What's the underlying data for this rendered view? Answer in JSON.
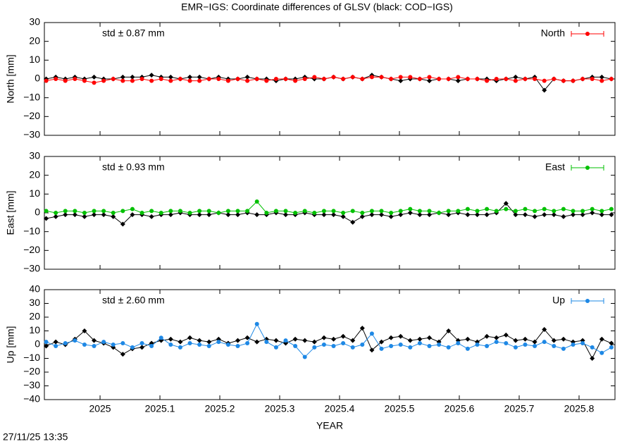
{
  "title": "EMR−IGS: Coordinate differences of GLSV (black: COD−IGS)",
  "timestamp": "27/11/25 13:35",
  "chart_data": [
    {
      "type": "line",
      "ylabel": "North [mm]",
      "annotation": "std ± 0.87 mm",
      "xlim": [
        2024.907,
        2025.86
      ],
      "xticks": [
        2025,
        2025.1,
        2025.2,
        2025.3,
        2025.4,
        2025.5,
        2025.6,
        2025.7,
        2025.8
      ],
      "ylim": [
        -30,
        30
      ],
      "yticks": [
        {
          "value": -30,
          "label": "−30"
        },
        {
          "value": -20,
          "label": "−20"
        },
        {
          "value": -10,
          "label": "−10"
        },
        0,
        10,
        20,
        30
      ],
      "x": [
        2024.91,
        2024.926,
        2024.942,
        2024.958,
        2024.974,
        2024.99,
        2025.006,
        2025.022,
        2025.038,
        2025.054,
        2025.07,
        2025.086,
        2025.102,
        2025.118,
        2025.134,
        2025.15,
        2025.166,
        2025.182,
        2025.198,
        2025.214,
        2025.23,
        2025.246,
        2025.262,
        2025.278,
        2025.294,
        2025.31,
        2025.326,
        2025.342,
        2025.358,
        2025.374,
        2025.39,
        2025.406,
        2025.422,
        2025.438,
        2025.454,
        2025.47,
        2025.486,
        2025.502,
        2025.518,
        2025.534,
        2025.55,
        2025.566,
        2025.582,
        2025.598,
        2025.614,
        2025.63,
        2025.646,
        2025.662,
        2025.678,
        2025.694,
        2025.71,
        2025.726,
        2025.742,
        2025.758,
        2025.774,
        2025.79,
        2025.806,
        2025.822,
        2025.838,
        2025.854
      ],
      "series": [
        {
          "name": "North",
          "color": "#ff0000",
          "values": [
            -1,
            0,
            -1,
            0,
            -1,
            -2,
            -1,
            0,
            -1,
            -1,
            0,
            -1,
            0,
            -1,
            0,
            -1,
            -1,
            0,
            0,
            -1,
            0,
            -1,
            0,
            -1,
            0,
            0,
            -1,
            0,
            1,
            0,
            1,
            0,
            1,
            0,
            1,
            1,
            0,
            1,
            1,
            0,
            1,
            0,
            0,
            1,
            0,
            0,
            -1,
            0,
            0,
            -1,
            0,
            0,
            -1,
            0,
            -1,
            -1,
            0,
            0,
            -1,
            0
          ]
        },
        {
          "color": "#000000",
          "values": [
            0,
            1,
            0,
            1,
            0,
            1,
            0,
            0,
            1,
            1,
            1,
            2,
            1,
            1,
            0,
            1,
            1,
            0,
            1,
            0,
            0,
            1,
            0,
            0,
            -1,
            0,
            0,
            1,
            0,
            0,
            1,
            0,
            1,
            0,
            2,
            1,
            0,
            -1,
            0,
            0,
            -1,
            0,
            0,
            -1,
            0,
            0,
            0,
            -1,
            0,
            1,
            0,
            1,
            -6,
            0,
            -1,
            -1,
            0,
            1,
            1,
            0
          ]
        }
      ]
    },
    {
      "type": "line",
      "ylabel": "East [mm]",
      "annotation": "std ± 0.93 mm",
      "xlim": [
        2024.907,
        2025.86
      ],
      "xticks": [
        2025,
        2025.1,
        2025.2,
        2025.3,
        2025.4,
        2025.5,
        2025.6,
        2025.7,
        2025.8
      ],
      "ylim": [
        -30,
        30
      ],
      "yticks": [
        {
          "value": -30,
          "label": "−30"
        },
        {
          "value": -20,
          "label": "−20"
        },
        {
          "value": -10,
          "label": "−10"
        },
        0,
        10,
        20,
        30
      ],
      "x": [
        2024.91,
        2024.926,
        2024.942,
        2024.958,
        2024.974,
        2024.99,
        2025.006,
        2025.022,
        2025.038,
        2025.054,
        2025.07,
        2025.086,
        2025.102,
        2025.118,
        2025.134,
        2025.15,
        2025.166,
        2025.182,
        2025.198,
        2025.214,
        2025.23,
        2025.246,
        2025.262,
        2025.278,
        2025.294,
        2025.31,
        2025.326,
        2025.342,
        2025.358,
        2025.374,
        2025.39,
        2025.406,
        2025.422,
        2025.438,
        2025.454,
        2025.47,
        2025.486,
        2025.502,
        2025.518,
        2025.534,
        2025.55,
        2025.566,
        2025.582,
        2025.598,
        2025.614,
        2025.63,
        2025.646,
        2025.662,
        2025.678,
        2025.694,
        2025.71,
        2025.726,
        2025.742,
        2025.758,
        2025.774,
        2025.79,
        2025.806,
        2025.822,
        2025.838,
        2025.854
      ],
      "series": [
        {
          "name": "East",
          "color": "#00c000",
          "values": [
            1,
            0,
            1,
            1,
            0,
            1,
            1,
            0,
            1,
            2,
            0,
            1,
            0,
            1,
            1,
            0,
            1,
            1,
            0,
            1,
            1,
            1,
            6,
            0,
            1,
            1,
            0,
            1,
            0,
            1,
            1,
            0,
            1,
            0,
            1,
            1,
            0,
            1,
            2,
            1,
            1,
            0,
            1,
            1,
            2,
            1,
            2,
            1,
            2,
            1,
            2,
            1,
            2,
            1,
            2,
            1,
            1,
            2,
            1,
            2
          ]
        },
        {
          "color": "#000000",
          "values": [
            -3,
            -2,
            -1,
            -1,
            -2,
            -1,
            -1,
            -2,
            -6,
            -1,
            -1,
            -2,
            -1,
            -1,
            0,
            -1,
            -1,
            -1,
            0,
            -1,
            -1,
            0,
            -1,
            -1,
            0,
            -1,
            -1,
            0,
            -1,
            -1,
            -1,
            -2,
            -5,
            -2,
            -1,
            -1,
            -2,
            -1,
            0,
            -1,
            -1,
            0,
            -1,
            0,
            -1,
            -1,
            -1,
            0,
            5,
            -1,
            -1,
            -2,
            -1,
            -1,
            -2,
            -1,
            -1,
            0,
            -1,
            -1
          ]
        }
      ]
    },
    {
      "type": "line",
      "ylabel": "Up [mm]",
      "annotation": "std ± 2.60 mm",
      "xlabel": "YEAR",
      "xlim": [
        2024.907,
        2025.86
      ],
      "xticks": [
        2025,
        2025.1,
        2025.2,
        2025.3,
        2025.4,
        2025.5,
        2025.6,
        2025.7,
        2025.8
      ],
      "ylim": [
        -40,
        40
      ],
      "yticks": [
        {
          "value": -40,
          "label": "−40"
        },
        {
          "value": -30,
          "label": "−30"
        },
        {
          "value": -20,
          "label": "−20"
        },
        {
          "value": -10,
          "label": "−10"
        },
        0,
        10,
        20,
        30,
        40
      ],
      "x": [
        2024.91,
        2024.926,
        2024.942,
        2024.958,
        2024.974,
        2024.99,
        2025.006,
        2025.022,
        2025.038,
        2025.054,
        2025.07,
        2025.086,
        2025.102,
        2025.118,
        2025.134,
        2025.15,
        2025.166,
        2025.182,
        2025.198,
        2025.214,
        2025.23,
        2025.246,
        2025.262,
        2025.278,
        2025.294,
        2025.31,
        2025.326,
        2025.342,
        2025.358,
        2025.374,
        2025.39,
        2025.406,
        2025.422,
        2025.438,
        2025.454,
        2025.47,
        2025.486,
        2025.502,
        2025.518,
        2025.534,
        2025.55,
        2025.566,
        2025.582,
        2025.598,
        2025.614,
        2025.63,
        2025.646,
        2025.662,
        2025.678,
        2025.694,
        2025.71,
        2025.726,
        2025.742,
        2025.758,
        2025.774,
        2025.79,
        2025.806,
        2025.822,
        2025.838,
        2025.854
      ],
      "series": [
        {
          "name": "Up",
          "color": "#1e88e5",
          "values": [
            2,
            -1,
            1,
            3,
            0,
            -1,
            2,
            0,
            1,
            -2,
            1,
            -1,
            5,
            0,
            -2,
            1,
            0,
            -1,
            2,
            0,
            -1,
            1,
            15,
            2,
            -2,
            3,
            -1,
            -9,
            -2,
            0,
            -1,
            1,
            -2,
            0,
            8,
            -3,
            -1,
            0,
            -2,
            1,
            -1,
            0,
            -2,
            1,
            -3,
            0,
            -1,
            2,
            1,
            -2,
            0,
            -1,
            2,
            -1,
            -3,
            0,
            1,
            -2,
            -6,
            -2
          ]
        },
        {
          "color": "#000000",
          "values": [
            -1,
            2,
            0,
            4,
            10,
            3,
            1,
            -2,
            -7,
            -3,
            -2,
            1,
            3,
            4,
            2,
            5,
            3,
            2,
            4,
            1,
            3,
            5,
            2,
            4,
            3,
            1,
            4,
            3,
            2,
            5,
            4,
            6,
            3,
            12,
            -4,
            2,
            5,
            6,
            3,
            4,
            5,
            2,
            10,
            3,
            4,
            2,
            6,
            5,
            7,
            3,
            4,
            2,
            11,
            3,
            4,
            2,
            3,
            -10,
            4,
            1
          ]
        }
      ]
    }
  ]
}
